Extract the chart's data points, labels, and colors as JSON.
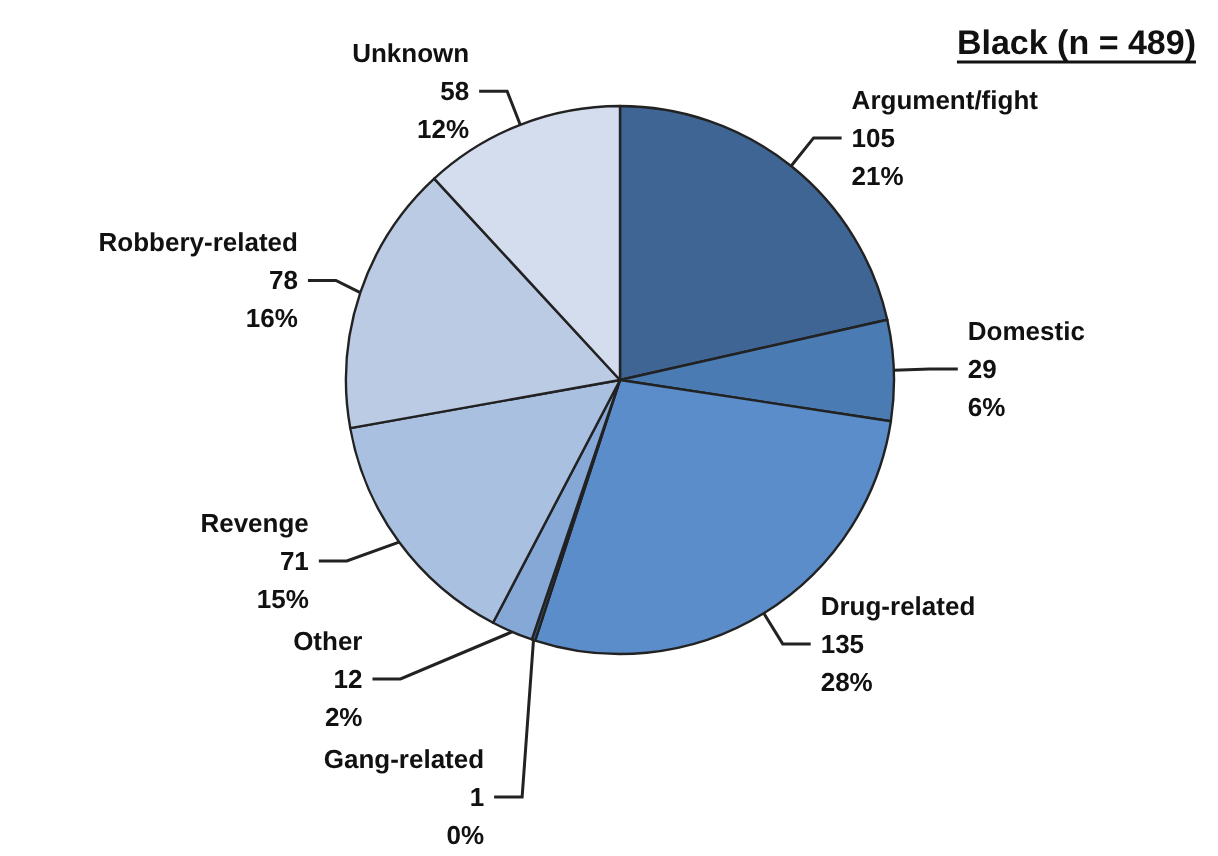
{
  "chart_data": {
    "type": "pie",
    "title": "Black (n = 489)",
    "categories": [
      "Argument/fight",
      "Domestic",
      "Drug-related",
      "Gang-related",
      "Other",
      "Revenge",
      "Robbery-related",
      "Unknown"
    ],
    "values": [
      105,
      29,
      135,
      1,
      12,
      71,
      78,
      58
    ],
    "value_labels": [
      "105\n21%",
      "29\n6%",
      "135\n28%",
      "1\n0%",
      "12\n2%",
      "71\n15%",
      "78\n16%",
      "58\n12%"
    ],
    "colors": [
      "#3f6594",
      "#4b7bb3",
      "#5a8dc9",
      "#3d5a85",
      "#86a8d6",
      "#a9c0e0",
      "#bccbe4",
      "#d4ddee"
    ],
    "legend": false
  }
}
